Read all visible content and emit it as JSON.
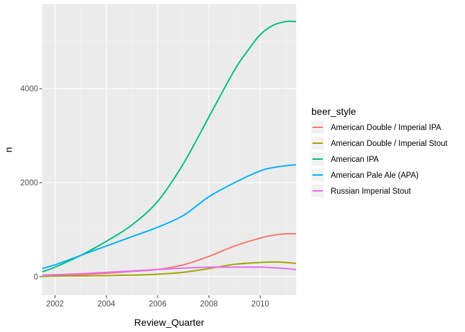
{
  "chart_data": {
    "type": "line",
    "xlabel": "Review_Quarter",
    "ylabel": "n",
    "xlim": [
      2001.5,
      2011.4
    ],
    "ylim": [
      -400,
      5800
    ],
    "x_ticks": [
      2002,
      2004,
      2006,
      2008,
      2010
    ],
    "y_ticks": [
      0,
      2000,
      4000
    ],
    "grid": true,
    "legend": {
      "title": "beer_style",
      "position": "right"
    },
    "series": [
      {
        "name": "American Double / Imperial IPA",
        "color": "#F8766D",
        "x": [
          2001.5,
          2002,
          2003,
          2004,
          2005,
          2006,
          2007,
          2008,
          2009,
          2010,
          2010.5,
          2011,
          2011.4
        ],
        "y": [
          10,
          20,
          40,
          70,
          110,
          150,
          250,
          430,
          650,
          820,
          880,
          910,
          910
        ]
      },
      {
        "name": "American Double / Imperial Stout",
        "color": "#A3A500",
        "x": [
          2001.5,
          2002,
          2003,
          2004,
          2005,
          2006,
          2007,
          2008,
          2009,
          2010,
          2010.5,
          2011,
          2011.4
        ],
        "y": [
          5,
          10,
          15,
          20,
          30,
          50,
          90,
          170,
          260,
          300,
          310,
          300,
          280
        ]
      },
      {
        "name": "American IPA",
        "color": "#00BF7D",
        "x": [
          2001.5,
          2002,
          2003,
          2004,
          2005,
          2006,
          2007,
          2008,
          2009,
          2009.5,
          2010,
          2010.5,
          2011,
          2011.4
        ],
        "y": [
          100,
          200,
          450,
          750,
          1100,
          1600,
          2400,
          3400,
          4400,
          4800,
          5150,
          5350,
          5430,
          5430
        ]
      },
      {
        "name": "American Pale Ale (APA)",
        "color": "#00B0F6",
        "x": [
          2001.5,
          2002,
          2003,
          2004,
          2005,
          2006,
          2007,
          2008,
          2009,
          2010,
          2010.5,
          2011,
          2011.4
        ],
        "y": [
          170,
          250,
          450,
          650,
          850,
          1050,
          1300,
          1700,
          2000,
          2250,
          2320,
          2360,
          2380
        ]
      },
      {
        "name": "Russian Imperial Stout",
        "color": "#E76BF3",
        "x": [
          2001.5,
          2002,
          2003,
          2004,
          2005,
          2006,
          2007,
          2008,
          2009,
          2010,
          2010.5,
          2011,
          2011.4
        ],
        "y": [
          30,
          40,
          60,
          90,
          120,
          150,
          180,
          200,
          200,
          200,
          190,
          170,
          150
        ]
      }
    ]
  }
}
